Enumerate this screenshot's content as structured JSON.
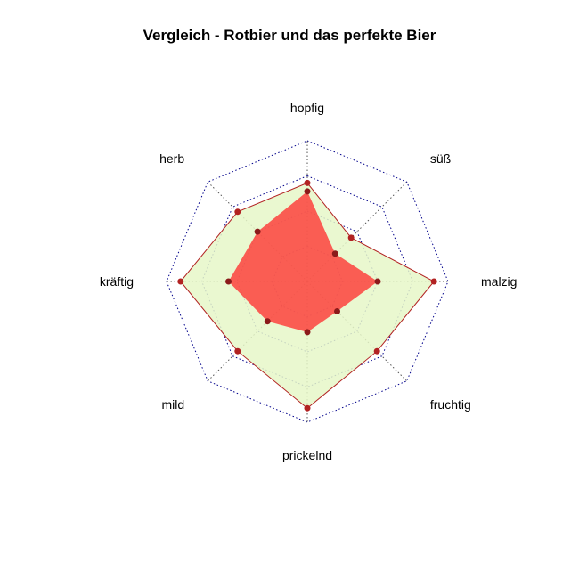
{
  "chart_data": {
    "type": "radar",
    "title": "Vergleich - Rotbier und das perfekte Bier",
    "axes": [
      "hopfig",
      "süß",
      "malzig",
      "fruchtig",
      "prickelnd",
      "mild",
      "kräftig",
      "herb"
    ],
    "rmax": 5,
    "grid_levels": 4,
    "grid": true,
    "series": [
      {
        "values": [
          3.5,
          2.2,
          4.5,
          3.5,
          4.5,
          3.5,
          4.5,
          3.5
        ],
        "fill": "#E6F7C8",
        "fill_opacity": 0.85,
        "stroke": "#B22222",
        "point": "#B22222"
      },
      {
        "values": [
          3.2,
          1.4,
          2.5,
          1.5,
          1.8,
          2.0,
          2.8,
          2.5
        ],
        "fill": "#FF2A2A",
        "fill_opacity": 0.75,
        "stroke": "none",
        "point": "#8B1A1A"
      }
    ],
    "grid_color": "#00008B"
  }
}
